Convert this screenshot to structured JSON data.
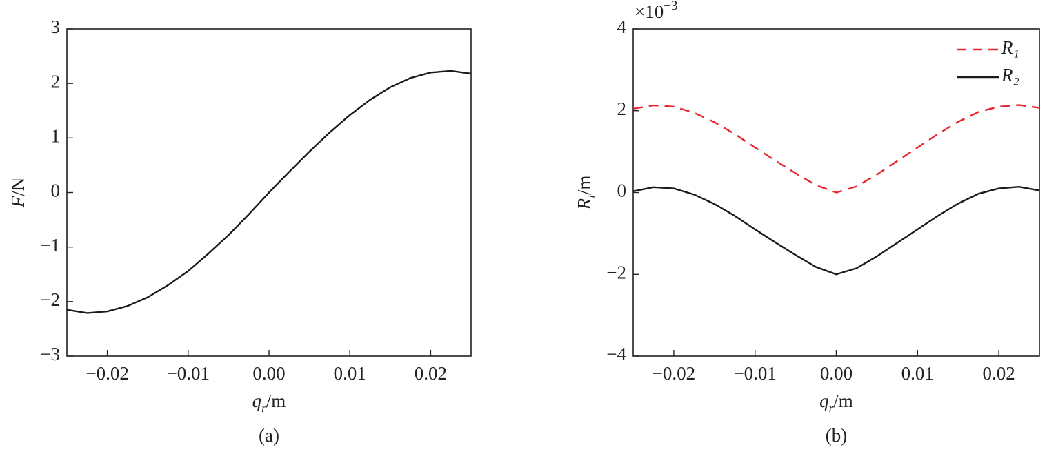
{
  "chart_data": [
    {
      "type": "line",
      "xlabel": {
        "symbol": "q",
        "sub": "r",
        "unit": "/m"
      },
      "ylabel": {
        "symbol": "F",
        "unit": "/N"
      },
      "caption": "(a)",
      "xlim": [
        -0.025,
        0.025
      ],
      "xticks": [
        {
          "value": -0.02,
          "label": "−0.02"
        },
        {
          "value": -0.01,
          "label": "−0.01"
        },
        {
          "value": 0,
          "label": "0.00"
        },
        {
          "value": 0.01,
          "label": "0.01"
        },
        {
          "value": 0.02,
          "label": "0.02"
        }
      ],
      "ylim": [
        -3,
        3
      ],
      "yticks": [
        {
          "value": -3,
          "label": "−3"
        },
        {
          "value": -2,
          "label": "−2"
        },
        {
          "value": -1,
          "label": "−1"
        },
        0,
        1,
        2,
        3
      ],
      "grid": false,
      "color": "#1a1a1a",
      "x": [
        -0.025,
        -0.0225,
        -0.02,
        -0.0175,
        -0.015,
        -0.0125,
        -0.01,
        -0.0075,
        -0.005,
        -0.0025,
        0,
        0.0025,
        0.005,
        0.0075,
        0.01,
        0.0125,
        0.015,
        0.0175,
        0.02,
        0.0225,
        0.025
      ],
      "values": [
        -2.15,
        -2.21,
        -2.18,
        -2.08,
        -1.92,
        -1.7,
        -1.44,
        -1.12,
        -0.78,
        -0.4,
        0.0,
        0.38,
        0.75,
        1.1,
        1.42,
        1.7,
        1.93,
        2.1,
        2.2,
        2.23,
        2.18
      ]
    },
    {
      "type": "line",
      "xlabel": {
        "symbol": "q",
        "sub": "r",
        "unit": "/m"
      },
      "ylabel": {
        "symbol": "R",
        "sub": "i",
        "unit": "/m"
      },
      "y_multiplier": {
        "base": "×10",
        "exponent": "−3"
      },
      "caption": "(b)",
      "xlim": [
        -0.025,
        0.025
      ],
      "xticks": [
        {
          "value": -0.02,
          "label": "−0.02"
        },
        {
          "value": -0.01,
          "label": "−0.01"
        },
        {
          "value": 0,
          "label": "0.00"
        },
        {
          "value": 0.01,
          "label": "0.01"
        },
        {
          "value": 0.02,
          "label": "0.02"
        }
      ],
      "ylim": [
        -4,
        4
      ],
      "yticks": [
        {
          "value": -4,
          "label": "−4"
        },
        {
          "value": -2,
          "label": "−2"
        },
        0,
        2,
        4
      ],
      "grid": false,
      "legend": "upper right",
      "x": [
        -0.025,
        -0.0225,
        -0.02,
        -0.0175,
        -0.015,
        -0.0125,
        -0.01,
        -0.0075,
        -0.005,
        -0.0025,
        0,
        0.0025,
        0.005,
        0.0075,
        0.01,
        0.0125,
        0.015,
        0.0175,
        0.02,
        0.0225,
        0.025
      ],
      "series": [
        {
          "name": "R₁",
          "color": "#e8262f",
          "style": "dashed",
          "values": [
            2.05,
            2.13,
            2.1,
            1.95,
            1.72,
            1.43,
            1.1,
            0.78,
            0.47,
            0.18,
            0.0,
            0.15,
            0.44,
            0.77,
            1.1,
            1.43,
            1.73,
            1.97,
            2.1,
            2.14,
            2.07
          ]
        },
        {
          "name": "R₂",
          "color": "#1a1a1a",
          "style": "solid",
          "values": [
            0.03,
            0.13,
            0.1,
            -0.05,
            -0.28,
            -0.57,
            -0.9,
            -1.22,
            -1.53,
            -1.82,
            -2.0,
            -1.85,
            -1.56,
            -1.23,
            -0.9,
            -0.57,
            -0.27,
            -0.03,
            0.1,
            0.14,
            0.05
          ]
        }
      ]
    }
  ]
}
